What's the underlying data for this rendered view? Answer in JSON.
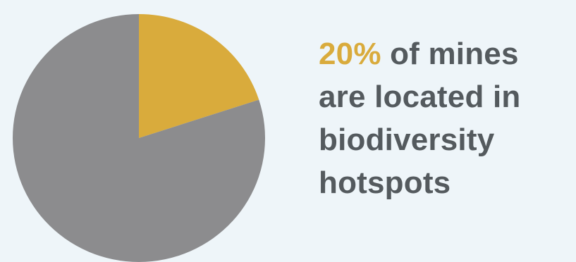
{
  "chart_data": {
    "type": "pie",
    "slices": [
      {
        "value": 20,
        "color": "#d9ab3c"
      },
      {
        "value": 80,
        "color": "#8c8c8e"
      }
    ],
    "start_angle": "12 o'clock",
    "direction": "clockwise"
  },
  "headline": {
    "highlight": "20%",
    "rest_line1": " of mines",
    "line2": "are located in",
    "line3": "biodiversity",
    "line4": "hotspots"
  },
  "colors": {
    "background": "#eef5f9",
    "text": "#545a5e",
    "highlight": "#d9ab3c"
  }
}
